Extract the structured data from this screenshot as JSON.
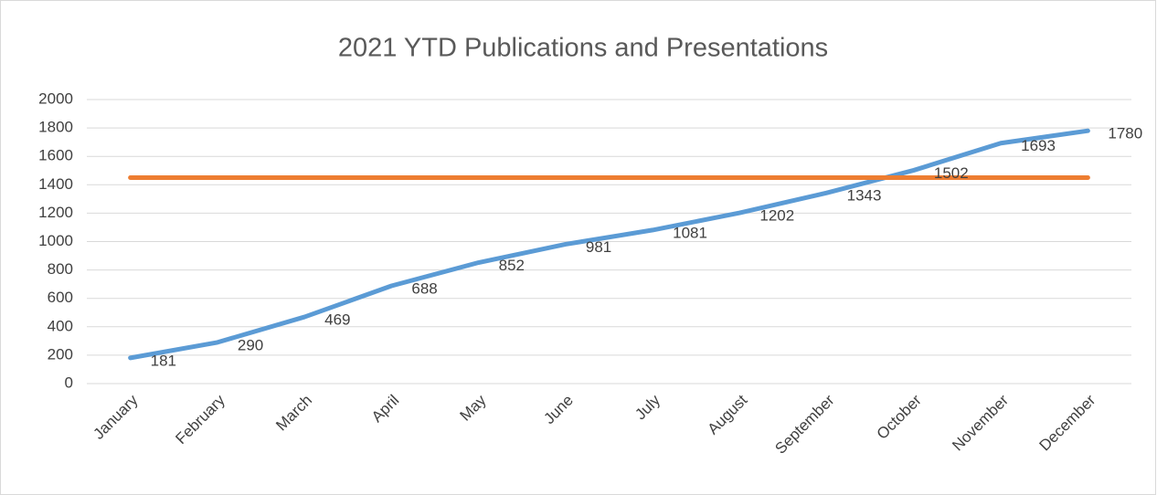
{
  "chart_data": {
    "type": "line",
    "title": "2021 YTD Publications and Presentations",
    "categories": [
      "January",
      "February",
      "March",
      "April",
      "May",
      "June",
      "July",
      "August",
      "September",
      "October",
      "November",
      "December"
    ],
    "series": [
      {
        "color": "#5b9bd5",
        "values": [
          181,
          290,
          469,
          688,
          852,
          981,
          1081,
          1202,
          1343,
          1502,
          1693,
          1780
        ],
        "data_labels": true
      },
      {
        "color": "#ed7d31",
        "values": [
          1450,
          1450,
          1450,
          1450,
          1450,
          1450,
          1450,
          1450,
          1450,
          1450,
          1450,
          1450
        ],
        "data_labels": false
      }
    ],
    "ylim": [
      0,
      2000
    ],
    "yticks": [
      0,
      200,
      400,
      600,
      800,
      1000,
      1200,
      1400,
      1600,
      1800,
      2000
    ],
    "grid": true
  }
}
